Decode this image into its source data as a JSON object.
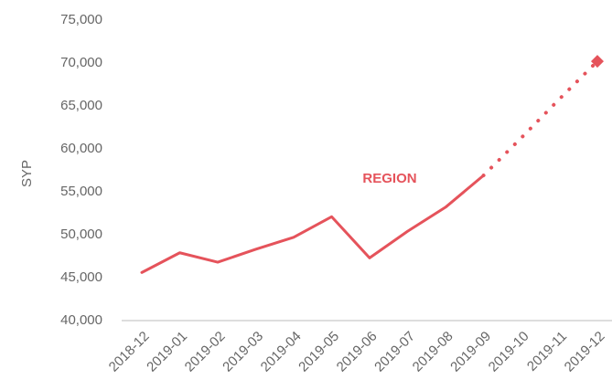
{
  "chart_data": {
    "type": "line",
    "y_label": "SYP",
    "categories": [
      "2018-12",
      "2019-01",
      "2019-02",
      "2019-03",
      "2019-04",
      "2019-05",
      "2019-06",
      "2019-07",
      "2019-08",
      "2019-09",
      "2019-10",
      "2019-11",
      "2019-12"
    ],
    "series": [
      {
        "name": "REGION",
        "color": "#e5535b",
        "style": "solid",
        "values": [
          45600,
          47900,
          46800,
          48300,
          49700,
          52100,
          47300,
          50400,
          53200,
          56900,
          null,
          null,
          null
        ]
      },
      {
        "color": "#e5535b",
        "style": "dotted",
        "marker": "diamond",
        "values": [
          null,
          null,
          null,
          null,
          null,
          null,
          null,
          null,
          null,
          56900,
          61300,
          65800,
          70200
        ]
      }
    ],
    "ylim": [
      40000,
      75000
    ],
    "yticks": [
      {
        "value": 40000,
        "label": "40,000"
      },
      {
        "value": 45000,
        "label": "45,000"
      },
      {
        "value": 50000,
        "label": "50,000"
      },
      {
        "value": 55000,
        "label": "55,000"
      },
      {
        "value": 60000,
        "label": "60,000"
      },
      {
        "value": 65000,
        "label": "65,000"
      },
      {
        "value": 70000,
        "label": "70,000"
      },
      {
        "value": 75000,
        "label": "75,000"
      }
    ],
    "grid": false
  }
}
